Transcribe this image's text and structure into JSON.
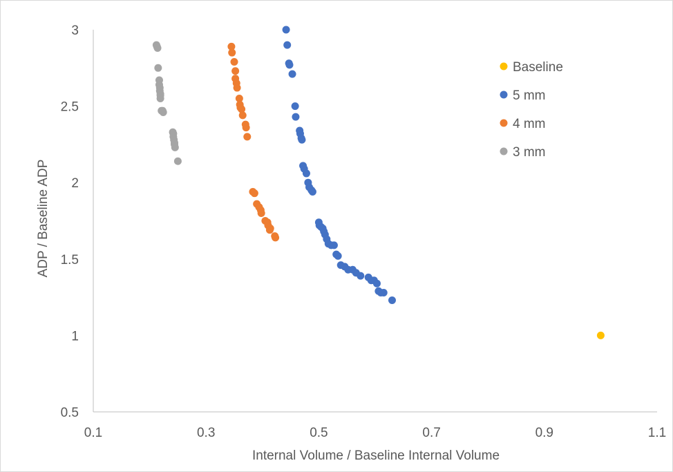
{
  "chart_data": {
    "type": "scatter",
    "title": "",
    "xlabel": "Internal Volume / Baseline Internal Volume",
    "ylabel": "ADP / Baseline ADP",
    "xlim": [
      0.1,
      1.1
    ],
    "ylim": [
      0.5,
      3
    ],
    "x_ticks": [
      "0.1",
      "0.3",
      "0.5",
      "0.7",
      "0.9",
      "1.1"
    ],
    "y_ticks": [
      "0.5",
      "1",
      "1.5",
      "2",
      "2.5",
      "3"
    ],
    "grid": false,
    "legend_position": "top-right",
    "series": [
      {
        "name": "Baseline",
        "color": "#FFC000",
        "points": [
          [
            1.0,
            1.0
          ]
        ]
      },
      {
        "name": "5 mm",
        "color": "#4472C4",
        "points": [
          [
            0.442,
            3.0
          ],
          [
            0.444,
            2.9
          ],
          [
            0.447,
            2.78
          ],
          [
            0.448,
            2.77
          ],
          [
            0.453,
            2.71
          ],
          [
            0.458,
            2.5
          ],
          [
            0.459,
            2.43
          ],
          [
            0.466,
            2.34
          ],
          [
            0.467,
            2.32
          ],
          [
            0.469,
            2.29
          ],
          [
            0.47,
            2.28
          ],
          [
            0.472,
            2.11
          ],
          [
            0.474,
            2.09
          ],
          [
            0.478,
            2.06
          ],
          [
            0.481,
            2.0
          ],
          [
            0.483,
            1.97
          ],
          [
            0.487,
            1.95
          ],
          [
            0.489,
            1.94
          ],
          [
            0.5,
            1.74
          ],
          [
            0.501,
            1.72
          ],
          [
            0.504,
            1.71
          ],
          [
            0.507,
            1.7
          ],
          [
            0.509,
            1.68
          ],
          [
            0.511,
            1.66
          ],
          [
            0.514,
            1.63
          ],
          [
            0.517,
            1.6
          ],
          [
            0.522,
            1.59
          ],
          [
            0.527,
            1.59
          ],
          [
            0.531,
            1.53
          ],
          [
            0.534,
            1.52
          ],
          [
            0.539,
            1.46
          ],
          [
            0.546,
            1.45
          ],
          [
            0.552,
            1.43
          ],
          [
            0.56,
            1.43
          ],
          [
            0.566,
            1.41
          ],
          [
            0.574,
            1.39
          ],
          [
            0.588,
            1.38
          ],
          [
            0.593,
            1.36
          ],
          [
            0.598,
            1.36
          ],
          [
            0.603,
            1.34
          ],
          [
            0.606,
            1.29
          ],
          [
            0.61,
            1.28
          ],
          [
            0.615,
            1.28
          ],
          [
            0.63,
            1.23
          ]
        ]
      },
      {
        "name": "4 mm",
        "color": "#ED7D31",
        "points": [
          [
            0.345,
            2.89
          ],
          [
            0.346,
            2.85
          ],
          [
            0.35,
            2.79
          ],
          [
            0.352,
            2.73
          ],
          [
            0.352,
            2.68
          ],
          [
            0.354,
            2.65
          ],
          [
            0.355,
            2.62
          ],
          [
            0.359,
            2.55
          ],
          [
            0.36,
            2.51
          ],
          [
            0.361,
            2.49
          ],
          [
            0.363,
            2.48
          ],
          [
            0.365,
            2.44
          ],
          [
            0.37,
            2.38
          ],
          [
            0.371,
            2.36
          ],
          [
            0.373,
            2.3
          ],
          [
            0.383,
            1.94
          ],
          [
            0.386,
            1.93
          ],
          [
            0.39,
            1.86
          ],
          [
            0.394,
            1.84
          ],
          [
            0.397,
            1.82
          ],
          [
            0.398,
            1.8
          ],
          [
            0.405,
            1.75
          ],
          [
            0.409,
            1.74
          ],
          [
            0.41,
            1.72
          ],
          [
            0.414,
            1.7
          ],
          [
            0.413,
            1.69
          ],
          [
            0.422,
            1.65
          ],
          [
            0.423,
            1.64
          ]
        ]
      },
      {
        "name": "3 mm",
        "color": "#A5A5A5",
        "points": [
          [
            0.212,
            2.9
          ],
          [
            0.213,
            2.89
          ],
          [
            0.214,
            2.88
          ],
          [
            0.215,
            2.75
          ],
          [
            0.217,
            2.67
          ],
          [
            0.217,
            2.64
          ],
          [
            0.218,
            2.62
          ],
          [
            0.218,
            2.6
          ],
          [
            0.219,
            2.58
          ],
          [
            0.219,
            2.57
          ],
          [
            0.219,
            2.55
          ],
          [
            0.221,
            2.47
          ],
          [
            0.223,
            2.47
          ],
          [
            0.224,
            2.46
          ],
          [
            0.241,
            2.33
          ],
          [
            0.242,
            2.32
          ],
          [
            0.242,
            2.3
          ],
          [
            0.243,
            2.28
          ],
          [
            0.244,
            2.26
          ],
          [
            0.244,
            2.25
          ],
          [
            0.245,
            2.23
          ],
          [
            0.25,
            2.14
          ]
        ]
      }
    ]
  }
}
